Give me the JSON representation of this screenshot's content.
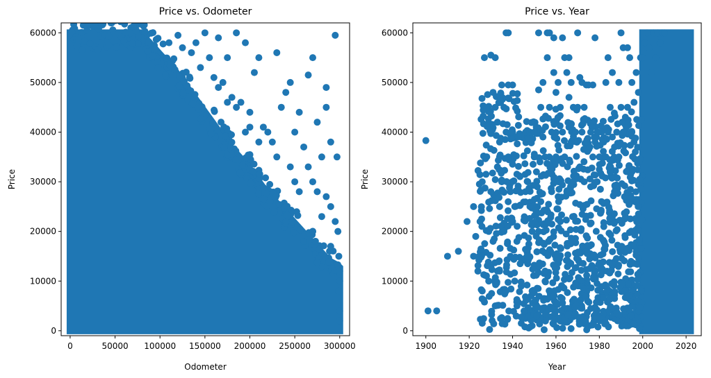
{
  "chart_data": [
    {
      "type": "scatter",
      "title": "Price vs. Odometer",
      "xlabel": "Odometer",
      "ylabel": "Price",
      "xlim": [
        -10000,
        311000
      ],
      "ylim": [
        -1000,
        62000
      ],
      "xticks": [
        0,
        50000,
        100000,
        150000,
        200000,
        250000,
        300000
      ],
      "yticks": [
        0,
        10000,
        20000,
        30000,
        40000,
        50000,
        60000
      ],
      "color": "#1f77b4",
      "grid": false,
      "dense_region": {
        "x_range": [
          0,
          300000
        ],
        "price_floor": 0,
        "upper_price_by_odometer": [
          [
            0,
            60000
          ],
          [
            80000,
            60000
          ],
          [
            100000,
            56000
          ],
          [
            120000,
            52000
          ],
          [
            140000,
            47000
          ],
          [
            160000,
            42000
          ],
          [
            180000,
            37000
          ],
          [
            200000,
            33000
          ],
          [
            220000,
            28000
          ],
          [
            240000,
            24000
          ],
          [
            260000,
            20000
          ],
          [
            280000,
            16000
          ],
          [
            290000,
            14000
          ],
          [
            300000,
            13000
          ]
        ]
      },
      "points": [
        [
          295000,
          59500
        ],
        [
          285000,
          49000
        ],
        [
          270000,
          55000
        ],
        [
          265000,
          51500
        ],
        [
          255000,
          44000
        ],
        [
          250000,
          40000
        ],
        [
          275000,
          42000
        ],
        [
          290000,
          38000
        ],
        [
          285000,
          45000
        ],
        [
          297000,
          35000
        ],
        [
          280000,
          35000
        ],
        [
          240000,
          48000
        ],
        [
          235000,
          45000
        ],
        [
          245000,
          50000
        ],
        [
          230000,
          56000
        ],
        [
          210000,
          55000
        ],
        [
          205000,
          52000
        ],
        [
          195000,
          58000
        ],
        [
          185000,
          60000
        ],
        [
          175000,
          55000
        ],
        [
          165000,
          59000
        ],
        [
          150000,
          60000
        ],
        [
          140000,
          58000
        ],
        [
          120000,
          59500
        ],
        [
          155000,
          55000
        ],
        [
          160000,
          51000
        ],
        [
          170000,
          50000
        ],
        [
          180000,
          47000
        ],
        [
          190000,
          46000
        ],
        [
          200000,
          44000
        ],
        [
          215000,
          41000
        ],
        [
          225000,
          38000
        ],
        [
          260000,
          37000
        ],
        [
          265000,
          33000
        ],
        [
          270000,
          30000
        ],
        [
          275000,
          28000
        ],
        [
          285000,
          27000
        ],
        [
          290000,
          25000
        ],
        [
          295000,
          22000
        ],
        [
          298000,
          20000
        ],
        [
          250000,
          30000
        ],
        [
          255000,
          28000
        ],
        [
          245000,
          33000
        ],
        [
          230000,
          35000
        ],
        [
          220000,
          40000
        ],
        [
          210000,
          38000
        ],
        [
          200000,
          41000
        ],
        [
          195000,
          40000
        ],
        [
          185000,
          45000
        ],
        [
          175000,
          46000
        ],
        [
          165000,
          49000
        ],
        [
          145000,
          53000
        ],
        [
          135000,
          56000
        ],
        [
          125000,
          57000
        ],
        [
          110000,
          58000
        ],
        [
          240000,
          22000
        ],
        [
          260000,
          18000
        ],
        [
          280000,
          23000
        ],
        [
          270000,
          20000
        ],
        [
          290000,
          17000
        ],
        [
          299000,
          15000
        ],
        [
          300000,
          12000
        ],
        [
          299000,
          8000
        ],
        [
          300000,
          4000
        ],
        [
          300000,
          2000
        ],
        [
          300000,
          10000
        ]
      ]
    },
    {
      "type": "scatter",
      "title": "Price vs. Year",
      "xlabel": "Year",
      "ylabel": "Price",
      "xlim": [
        1894,
        2027
      ],
      "ylim": [
        -1000,
        62000
      ],
      "xticks": [
        1900,
        1920,
        1940,
        1960,
        1980,
        2000,
        2020
      ],
      "yticks": [
        0,
        10000,
        20000,
        30000,
        40000,
        50000,
        60000
      ],
      "color": "#1f77b4",
      "grid": false,
      "dense_band": {
        "year_range": [
          2000,
          2022
        ],
        "price_range": [
          0,
          60000
        ]
      },
      "points": [
        [
          1900,
          38300
        ],
        [
          1901,
          4000
        ],
        [
          1905,
          4000
        ],
        [
          1910,
          15000
        ],
        [
          1915,
          16000
        ],
        [
          1919,
          22000
        ],
        [
          1922,
          15000
        ],
        [
          1922,
          25000
        ],
        [
          1923,
          19000
        ],
        [
          1924,
          12000
        ],
        [
          1925,
          22000
        ],
        [
          1926,
          30000
        ],
        [
          1926,
          8000
        ],
        [
          1926,
          1500
        ],
        [
          1927,
          55000
        ],
        [
          1928,
          35000
        ],
        [
          1928,
          45000
        ],
        [
          1929,
          20000
        ],
        [
          1929,
          10000
        ],
        [
          1930,
          55500
        ],
        [
          1930,
          40000
        ],
        [
          1930,
          28000
        ],
        [
          1931,
          48000
        ],
        [
          1931,
          18000
        ],
        [
          1932,
          45000
        ],
        [
          1932,
          55000
        ],
        [
          1932,
          5000
        ],
        [
          1933,
          42000
        ],
        [
          1933,
          33000
        ],
        [
          1934,
          38000
        ],
        [
          1934,
          25000
        ],
        [
          1934,
          12000
        ],
        [
          1935,
          49500
        ],
        [
          1935,
          30000
        ],
        [
          1936,
          45000
        ],
        [
          1936,
          20000
        ],
        [
          1937,
          60000
        ],
        [
          1937,
          40000
        ],
        [
          1937,
          8000
        ],
        [
          1938,
          49500
        ],
        [
          1938,
          60000
        ],
        [
          1938,
          35000
        ],
        [
          1939,
          15000
        ],
        [
          1939,
          28000
        ],
        [
          1940,
          49500
        ],
        [
          1940,
          40000
        ],
        [
          1940,
          22000
        ],
        [
          1941,
          25000
        ],
        [
          1941,
          10000
        ],
        [
          1942,
          18000
        ],
        [
          1942,
          5000
        ],
        [
          1944,
          1500
        ],
        [
          1946,
          40000
        ],
        [
          1947,
          30000
        ],
        [
          1947,
          15000
        ],
        [
          1948,
          40000
        ],
        [
          1948,
          25000
        ],
        [
          1949,
          20000
        ],
        [
          1949,
          8000
        ],
        [
          1950,
          40000
        ],
        [
          1950,
          35000
        ],
        [
          1951,
          32000
        ],
        [
          1951,
          3000
        ],
        [
          1952,
          60000
        ],
        [
          1952,
          48500
        ],
        [
          1952,
          20000
        ],
        [
          1953,
          45000
        ],
        [
          1953,
          26000
        ],
        [
          1954,
          50000
        ],
        [
          1954,
          39000
        ],
        [
          1955,
          35000
        ],
        [
          1955,
          12000
        ],
        [
          1956,
          60000
        ],
        [
          1956,
          55000
        ],
        [
          1957,
          60000
        ],
        [
          1957,
          45000
        ],
        [
          1958,
          40000
        ],
        [
          1958,
          28000
        ],
        [
          1959,
          59000
        ],
        [
          1959,
          52000
        ],
        [
          1960,
          48000
        ],
        [
          1960,
          35000
        ],
        [
          1961,
          50000
        ],
        [
          1961,
          30000
        ],
        [
          1962,
          45000
        ],
        [
          1962,
          22000
        ],
        [
          1963,
          59000
        ],
        [
          1963,
          40000
        ],
        [
          1964,
          55000
        ],
        [
          1964,
          35000
        ],
        [
          1965,
          52000
        ],
        [
          1965,
          28000
        ],
        [
          1966,
          55000
        ],
        [
          1966,
          47000
        ],
        [
          1967,
          50000
        ],
        [
          1967,
          38000
        ],
        [
          1968,
          45000
        ],
        [
          1968,
          30000
        ],
        [
          1969,
          40000
        ],
        [
          1970,
          60000
        ],
        [
          1970,
          45000
        ],
        [
          1971,
          51000
        ],
        [
          1971,
          33000
        ],
        [
          1972,
          50000
        ],
        [
          1972,
          40000
        ],
        [
          1973,
          45000
        ],
        [
          1973,
          30000
        ],
        [
          1974,
          49500
        ],
        [
          1974,
          38000
        ],
        [
          1975,
          49500
        ],
        [
          1976,
          40000
        ],
        [
          1976,
          29000
        ],
        [
          1977,
          49500
        ],
        [
          1977,
          35000
        ],
        [
          1978,
          59000
        ],
        [
          1978,
          38000
        ],
        [
          1979,
          40000
        ],
        [
          1979,
          30000
        ],
        [
          1980,
          35000
        ],
        [
          1981,
          40000
        ],
        [
          1981,
          26000
        ],
        [
          1982,
          38000
        ],
        [
          1983,
          50000
        ],
        [
          1983,
          35000
        ],
        [
          1984,
          55000
        ],
        [
          1984,
          40000
        ],
        [
          1985,
          45000
        ],
        [
          1985,
          32000
        ],
        [
          1986,
          52000
        ],
        [
          1986,
          39000
        ],
        [
          1987,
          37000
        ],
        [
          1987,
          28000
        ],
        [
          1988,
          40000
        ],
        [
          1989,
          50000
        ],
        [
          1989,
          35000
        ],
        [
          1990,
          60000
        ],
        [
          1990,
          45000
        ],
        [
          1991,
          57000
        ],
        [
          1991,
          40000
        ],
        [
          1992,
          43000
        ],
        [
          1993,
          57000
        ],
        [
          1993,
          45000
        ],
        [
          1994,
          55000
        ],
        [
          1995,
          50000
        ],
        [
          1995,
          40000
        ],
        [
          1996,
          46000
        ],
        [
          1997,
          52000
        ],
        [
          1998,
          48000
        ],
        [
          1999,
          55000
        ],
        [
          2000,
          55000
        ],
        [
          2001,
          58000
        ],
        [
          2002,
          60000
        ],
        [
          2003,
          57000
        ],
        [
          2004,
          52000
        ],
        [
          2005,
          60000
        ],
        [
          2006,
          55000
        ],
        [
          2007,
          60000
        ],
        [
          2008,
          58000
        ],
        [
          2009,
          60000
        ],
        [
          2010,
          60000
        ]
      ]
    }
  ]
}
